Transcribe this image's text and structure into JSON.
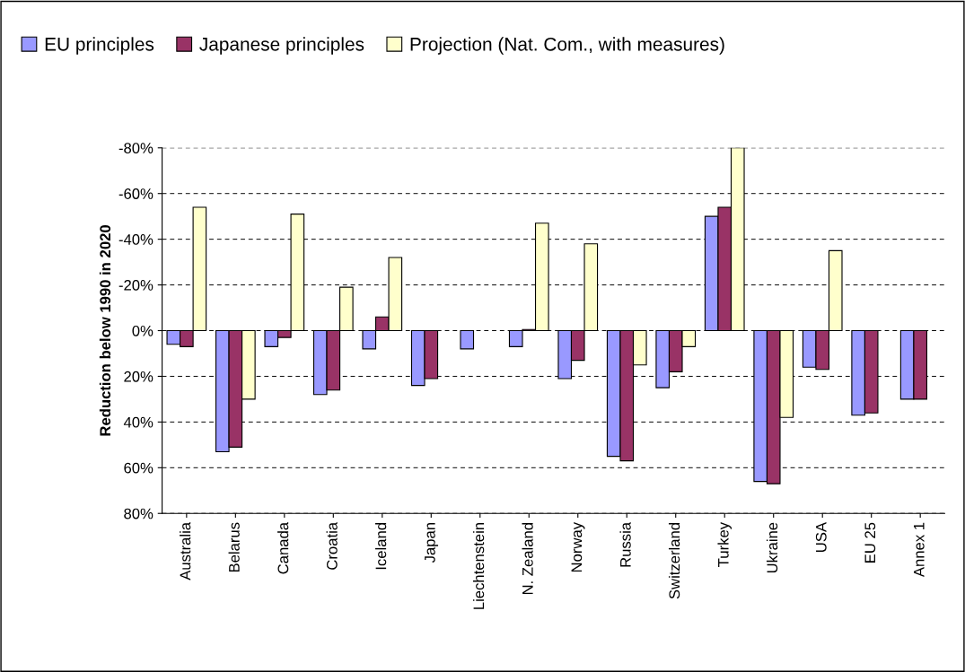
{
  "chart_data": {
    "type": "bar",
    "ylabel": "Reduction below 1990 in 2020",
    "categories": [
      "Australia",
      "Belarus",
      "Canada",
      "Croatia",
      "Iceland",
      "Japan",
      "Liechtenstein",
      "N. Zealand",
      "Norway",
      "Russia",
      "Switzerland",
      "Turkey",
      "Ukraine",
      "USA",
      "EU 25",
      "Annex 1"
    ],
    "series": [
      {
        "name": "EU principles",
        "color": "#9999ff",
        "values": [
          6,
          53,
          7,
          28,
          8,
          24,
          8,
          7,
          21,
          55,
          25,
          -50,
          66,
          16,
          37,
          30
        ]
      },
      {
        "name": "Japanese principles",
        "color": "#993366",
        "values": [
          7,
          51,
          3,
          26,
          -6,
          21,
          null,
          -0.5,
          13,
          57,
          18,
          -54,
          67,
          17,
          36,
          30
        ]
      },
      {
        "name": "Projection (Nat. Com., with measures)",
        "color": "#ffffcc",
        "values": [
          -54,
          30,
          -51,
          -19,
          -32,
          null,
          null,
          -47,
          -38,
          15,
          7,
          -80,
          38,
          -35,
          null,
          null
        ]
      }
    ],
    "ylim": [
      80,
      -80
    ],
    "yticks": [
      {
        "value": -80,
        "label": "-80%"
      },
      {
        "value": -60,
        "label": "-60%"
      },
      {
        "value": -40,
        "label": "-40%"
      },
      {
        "value": -20,
        "label": "-20%"
      },
      {
        "value": 0,
        "label": "0%"
      },
      {
        "value": 20,
        "label": "20%"
      },
      {
        "value": 40,
        "label": "40%"
      },
      {
        "value": 60,
        "label": "60%"
      },
      {
        "value": 80,
        "label": "80%"
      }
    ],
    "grid": "y",
    "legend": "top left"
  }
}
